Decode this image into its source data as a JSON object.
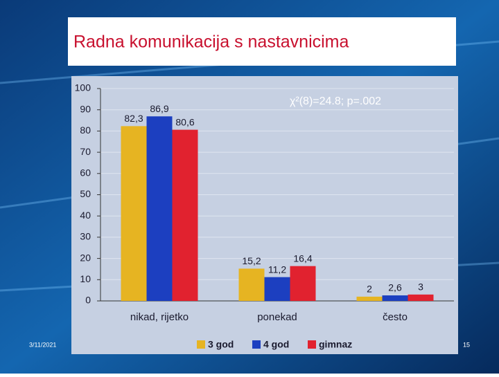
{
  "chart_data": {
    "type": "bar",
    "title": "Radna komunikacija s nastavnicima",
    "annotation": "χ²(8)=24.8; p=.002",
    "categories": [
      "nikad, rijetko",
      "ponekad",
      "često"
    ],
    "series": [
      {
        "name": "3 god",
        "color": "#e6b422",
        "values": [
          82.3,
          15.2,
          2
        ],
        "value_labels": [
          "82,3",
          "15,2",
          "2"
        ]
      },
      {
        "name": "4 god",
        "color": "#1c3fc0",
        "values": [
          86.9,
          11.2,
          2.6
        ],
        "value_labels": [
          "86,9",
          "11,2",
          "2,6"
        ]
      },
      {
        "name": "gimnaz",
        "color": "#e1222f",
        "values": [
          80.6,
          16.4,
          3
        ],
        "value_labels": [
          "80,6",
          "16,4",
          "3"
        ]
      }
    ],
    "ylim": [
      0,
      100
    ],
    "yticks": [
      0,
      10,
      20,
      30,
      40,
      50,
      60,
      70,
      80,
      90,
      100
    ],
    "grid": true,
    "legend": "bottom"
  },
  "footer": {
    "date": "3/11/2021",
    "page": "15"
  }
}
